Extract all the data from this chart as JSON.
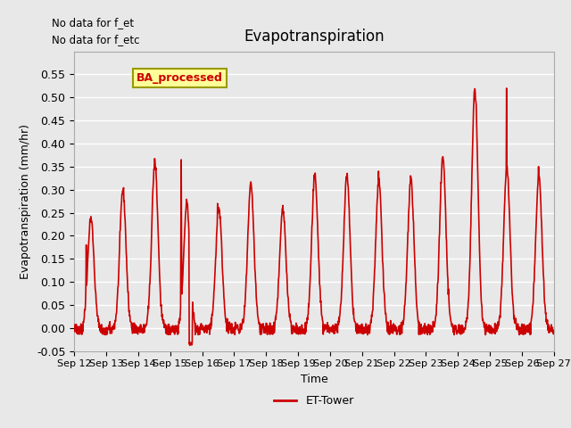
{
  "title": "Evapotranspiration",
  "ylabel": "Evapotranspiration (mm/hr)",
  "xlabel": "Time",
  "xlim_start": 12,
  "xlim_end": 27,
  "ylim": [
    -0.05,
    0.6
  ],
  "yticks": [
    -0.05,
    0.0,
    0.05,
    0.1,
    0.15,
    0.2,
    0.25,
    0.3,
    0.35,
    0.4,
    0.45,
    0.5,
    0.55
  ],
  "xtick_labels": [
    "Sep 12",
    "Sep 13",
    "Sep 14",
    "Sep 15",
    "Sep 16",
    "Sep 17",
    "Sep 18",
    "Sep 19",
    "Sep 20",
    "Sep 21",
    "Sep 22",
    "Sep 23",
    "Sep 24",
    "Sep 25",
    "Sep 26",
    "Sep 27"
  ],
  "xtick_positions": [
    12,
    13,
    14,
    15,
    16,
    17,
    18,
    19,
    20,
    21,
    22,
    23,
    24,
    25,
    26,
    27
  ],
  "line_color": "#cc0000",
  "line_width": 1.2,
  "bg_color": "#e8e8e8",
  "plot_bg_color": "#e8e8e8",
  "grid_color": "#ffffff",
  "legend_label": "ET-Tower",
  "annotation_text1": "No data for f_et",
  "annotation_text2": "No data for f_etc",
  "box_label": "BA_processed",
  "box_color": "#ffff99",
  "box_edge_color": "#999900"
}
